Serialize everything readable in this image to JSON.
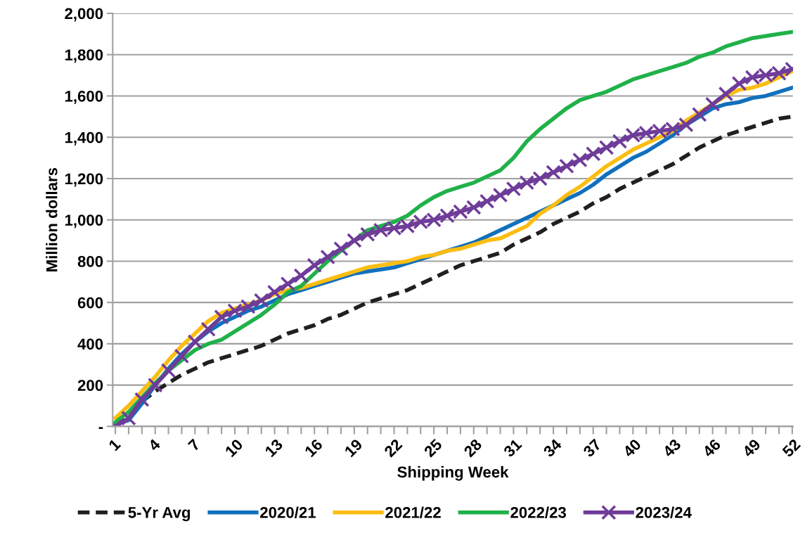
{
  "chart_data": {
    "type": "line",
    "xlabel": "Shipping Week",
    "ylabel": "Million dollars",
    "categories": [
      "1",
      null,
      null,
      "4",
      null,
      null,
      "7",
      null,
      null,
      "10",
      null,
      null,
      "13",
      null,
      null,
      "16",
      null,
      null,
      "19",
      null,
      null,
      "22",
      null,
      null,
      "25",
      null,
      null,
      "28",
      null,
      null,
      "31",
      null,
      null,
      "34",
      null,
      null,
      "37",
      null,
      null,
      "40",
      null,
      null,
      "43",
      null,
      null,
      "46",
      null,
      null,
      "49",
      null,
      null,
      "52"
    ],
    "ylim": [
      0,
      2000
    ],
    "yticks": [
      {
        "value": 0,
        "label": "-"
      },
      {
        "value": 200,
        "label": "200"
      },
      {
        "value": 400,
        "label": "400"
      },
      {
        "value": 600,
        "label": "600"
      },
      {
        "value": 800,
        "label": "800"
      },
      {
        "value": 1000,
        "label": "1,000"
      },
      {
        "value": 1200,
        "label": "1,200"
      },
      {
        "value": 1400,
        "label": "1,400"
      },
      {
        "value": 1600,
        "label": "1,600"
      },
      {
        "value": 1800,
        "label": "1,800"
      },
      {
        "value": 2000,
        "label": "2,000"
      }
    ],
    "grid": "y",
    "legend": "bottom",
    "series": [
      {
        "name": "5-Yr Avg",
        "color": "#231f20",
        "line_style": "dashed",
        "marker": "none",
        "values": [
          0,
          60,
          120,
          170,
          210,
          250,
          280,
          310,
          330,
          350,
          370,
          390,
          420,
          450,
          470,
          490,
          520,
          540,
          570,
          600,
          620,
          640,
          660,
          690,
          720,
          750,
          780,
          800,
          820,
          840,
          880,
          910,
          940,
          980,
          1010,
          1040,
          1080,
          1110,
          1150,
          1180,
          1210,
          1240,
          1270,
          1310,
          1350,
          1380,
          1410,
          1430,
          1450,
          1470,
          1490,
          1500
        ]
      },
      {
        "name": "2020/21",
        "color": "#1070bd",
        "line_style": "solid",
        "marker": "none",
        "values": [
          10,
          30,
          110,
          200,
          280,
          350,
          410,
          460,
          500,
          530,
          560,
          580,
          610,
          640,
          660,
          680,
          700,
          720,
          740,
          750,
          760,
          770,
          790,
          810,
          830,
          850,
          870,
          890,
          920,
          950,
          980,
          1010,
          1040,
          1070,
          1100,
          1130,
          1170,
          1220,
          1260,
          1300,
          1330,
          1370,
          1410,
          1460,
          1500,
          1540,
          1560,
          1570,
          1590,
          1600,
          1620,
          1640
        ]
      },
      {
        "name": "2021/22",
        "color": "#fbbd12",
        "line_style": "solid",
        "marker": "none",
        "values": [
          40,
          100,
          170,
          240,
          320,
          390,
          450,
          510,
          550,
          570,
          590,
          610,
          640,
          660,
          670,
          690,
          710,
          730,
          750,
          770,
          780,
          790,
          800,
          820,
          830,
          850,
          860,
          880,
          900,
          910,
          940,
          970,
          1030,
          1070,
          1120,
          1160,
          1210,
          1260,
          1300,
          1340,
          1370,
          1400,
          1430,
          1480,
          1520,
          1560,
          1600,
          1630,
          1640,
          1660,
          1690,
          1720
        ]
      },
      {
        "name": "2022/23",
        "color": "#20b14a",
        "line_style": "solid",
        "marker": "none",
        "values": [
          20,
          70,
          140,
          210,
          270,
          320,
          370,
          400,
          420,
          460,
          500,
          540,
          590,
          650,
          680,
          740,
          800,
          850,
          900,
          950,
          970,
          990,
          1020,
          1070,
          1110,
          1140,
          1160,
          1180,
          1210,
          1240,
          1300,
          1380,
          1440,
          1490,
          1540,
          1580,
          1600,
          1620,
          1650,
          1680,
          1700,
          1720,
          1740,
          1760,
          1790,
          1810,
          1840,
          1860,
          1880,
          1890,
          1900,
          1910
        ]
      },
      {
        "name": "2023/24",
        "color": "#6f3c99",
        "line_style": "solid",
        "marker": "cross",
        "values": [
          0,
          40,
          130,
          200,
          270,
          340,
          410,
          470,
          530,
          560,
          580,
          610,
          650,
          690,
          730,
          780,
          820,
          860,
          900,
          930,
          950,
          960,
          970,
          990,
          1000,
          1020,
          1040,
          1060,
          1090,
          1120,
          1150,
          1180,
          1200,
          1230,
          1260,
          1290,
          1320,
          1350,
          1380,
          1410,
          1420,
          1430,
          1440,
          1460,
          1510,
          1560,
          1610,
          1660,
          1690,
          1700,
          1710,
          1730
        ]
      }
    ]
  }
}
